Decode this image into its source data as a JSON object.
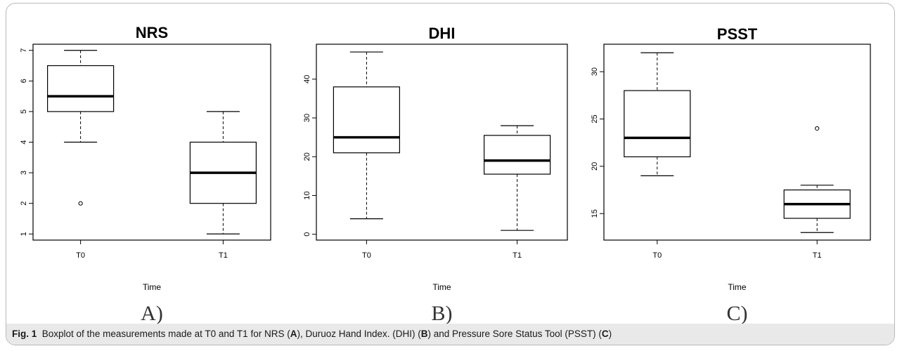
{
  "chart_data": [
    {
      "type": "boxplot",
      "panel_label": "A)",
      "title": "NRS",
      "xlabel": "Time",
      "ylabel": "",
      "categories": [
        "T0",
        "T1"
      ],
      "ylim": [
        0.8,
        7.2
      ],
      "yticks": [
        1,
        2,
        3,
        4,
        5,
        6,
        7
      ],
      "boxes": [
        {
          "min": 4,
          "q1": 5,
          "median": 5.5,
          "q3": 6.5,
          "max": 7,
          "outliers": [
            2
          ]
        },
        {
          "min": 1,
          "q1": 2,
          "median": 3,
          "q3": 4,
          "max": 5,
          "outliers": []
        }
      ]
    },
    {
      "type": "boxplot",
      "panel_label": "B)",
      "title": "DHI",
      "xlabel": "Time",
      "ylabel": "",
      "categories": [
        "T0",
        "T1"
      ],
      "ylim": [
        -1.5,
        49
      ],
      "yticks": [
        0,
        10,
        20,
        30,
        40
      ],
      "boxes": [
        {
          "min": 4,
          "q1": 21,
          "median": 25,
          "q3": 38,
          "max": 47,
          "outliers": []
        },
        {
          "min": 1,
          "q1": 15.5,
          "median": 19,
          "q3": 25.5,
          "max": 28,
          "outliers": []
        }
      ]
    },
    {
      "type": "boxplot",
      "panel_label": "C)",
      "title": "PSST",
      "xlabel": "Time",
      "ylabel": "",
      "categories": [
        "T0",
        "T1"
      ],
      "ylim": [
        12.2,
        32.9
      ],
      "yticks": [
        15,
        20,
        25,
        30
      ],
      "boxes": [
        {
          "min": 19,
          "q1": 21,
          "median": 23,
          "q3": 28,
          "max": 32,
          "outliers": []
        },
        {
          "min": 13,
          "q1": 14.5,
          "median": 16,
          "q3": 17.5,
          "max": 18,
          "outliers": [
            24
          ]
        }
      ]
    }
  ],
  "caption": {
    "label": "Fig. 1",
    "parts": [
      {
        "text": "  Boxplot of the measurements made at T0 and T1 for NRS (",
        "bold": false
      },
      {
        "text": "A",
        "bold": true
      },
      {
        "text": "), Duruoz Hand Index. (DHI) (",
        "bold": false
      },
      {
        "text": "B",
        "bold": true
      },
      {
        "text": ") and Pressure Sore Status Tool (PSST) (",
        "bold": false
      },
      {
        "text": "C",
        "bold": true
      },
      {
        "text": ")",
        "bold": false
      }
    ]
  }
}
